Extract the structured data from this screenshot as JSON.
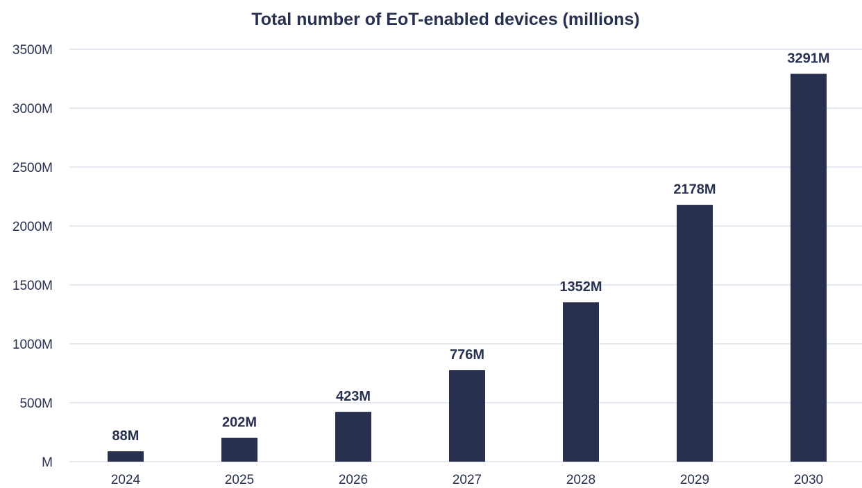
{
  "chart_data": {
    "type": "bar",
    "title": "Total number of EoT-enabled devices (millions)",
    "xlabel": "",
    "ylabel": "",
    "categories": [
      "2024",
      "2025",
      "2026",
      "2027",
      "2028",
      "2029",
      "2030"
    ],
    "values": [
      88,
      202,
      423,
      776,
      1352,
      2178,
      3291
    ],
    "data_labels": [
      "88M",
      "202M",
      "423M",
      "776M",
      "1352M",
      "2178M",
      "3291M"
    ],
    "y_ticks": [
      0,
      500,
      1000,
      1500,
      2000,
      2500,
      3000,
      3500
    ],
    "y_tick_labels": [
      "M",
      "500M",
      "1000M",
      "1500M",
      "2000M",
      "2500M",
      "3000M",
      "3500M"
    ],
    "ylim": [
      0,
      3500
    ],
    "grid": true,
    "legend": "none",
    "colors": {
      "bar": "#283050",
      "text": "#283050",
      "grid": "#d9dbea"
    }
  }
}
